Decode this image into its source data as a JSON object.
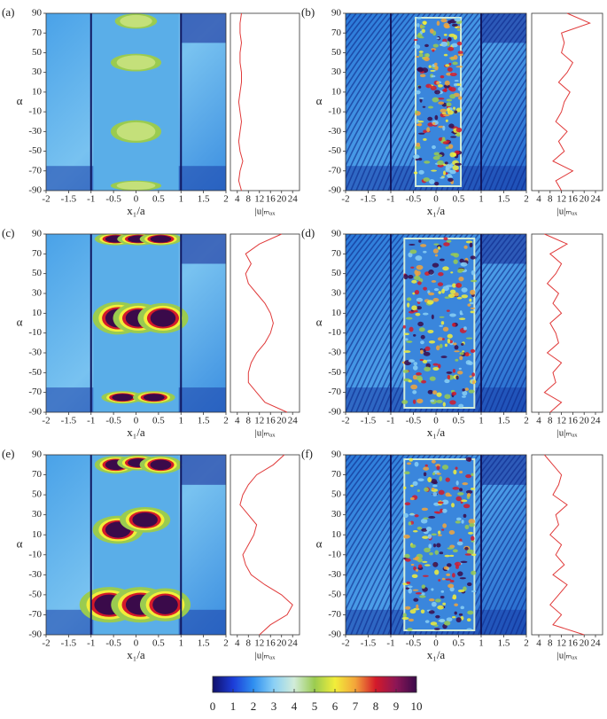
{
  "chart_data": [
    {
      "type": "heatmap",
      "panel": "(a)",
      "xlabel": "x₁/a",
      "ylabel": "α",
      "xlim": [
        -2,
        2
      ],
      "ylim": [
        -90,
        90
      ],
      "xticks": [
        -2,
        -1.5,
        -1,
        -0.5,
        0,
        0.5,
        1,
        1.5,
        2
      ],
      "yticks": [
        -90,
        -70,
        -50,
        -30,
        -10,
        10,
        30,
        50,
        70,
        90
      ]
    },
    {
      "type": "line",
      "xlabel": "|u|ₘₐₓ",
      "xlim": [
        1.5,
        26.5
      ],
      "ylim": [
        -90,
        90
      ],
      "xticks": [
        4,
        8,
        12,
        16,
        20,
        24
      ],
      "alpha": [
        -90,
        -80,
        -70,
        -60,
        -50,
        -40,
        -30,
        -20,
        -10,
        0,
        10,
        20,
        30,
        40,
        50,
        60,
        70,
        80,
        90
      ],
      "series": [
        {
          "color": "#e03a3a",
          "values": [
            5.5,
            4.5,
            5,
            6,
            5,
            4.5,
            5,
            5.5,
            5,
            4.5,
            5,
            5.5,
            5.5,
            5,
            5,
            5.5,
            5,
            5,
            5.5
          ]
        }
      ]
    },
    {
      "type": "heatmap",
      "panel": "(b)",
      "xlabel": "x₁/a",
      "ylabel": "α",
      "xlim": [
        -2,
        2
      ],
      "ylim": [
        -90,
        90
      ],
      "xticks": [
        -2,
        -1.5,
        -1,
        -0.5,
        0,
        0.5,
        1,
        1.5,
        2
      ],
      "yticks": [
        -90,
        -70,
        -50,
        -30,
        -10,
        10,
        30,
        50,
        70,
        90
      ]
    },
    {
      "type": "line",
      "xlabel": "|u|ₘₐₓ",
      "xlim": [
        1.5,
        26.5
      ],
      "ylim": [
        -90,
        90
      ],
      "xticks": [
        4,
        8,
        12,
        16,
        20,
        24
      ],
      "alpha": [
        -90,
        -80,
        -70,
        -60,
        -50,
        -40,
        -30,
        -20,
        -10,
        0,
        10,
        20,
        30,
        40,
        50,
        60,
        70,
        80,
        90
      ],
      "series": [
        {
          "color": "#e03a3a",
          "values": [
            12,
            10,
            16,
            9,
            13,
            11,
            14,
            10,
            12,
            13,
            15,
            11,
            14,
            16,
            12,
            13,
            12,
            22,
            14
          ]
        }
      ]
    },
    {
      "type": "heatmap",
      "panel": "(c)",
      "xlabel": "x₁/a",
      "ylabel": "α",
      "xlim": [
        -2,
        2
      ],
      "ylim": [
        -90,
        90
      ],
      "xticks": [
        -2,
        -1.5,
        -1,
        -0.5,
        0,
        0.5,
        1,
        1.5,
        2
      ],
      "yticks": [
        -90,
        -70,
        -50,
        -30,
        -10,
        10,
        30,
        50,
        70,
        90
      ]
    },
    {
      "type": "line",
      "xlabel": "|u|ₘₐₓ",
      "xlim": [
        1.5,
        26.5
      ],
      "ylim": [
        -90,
        90
      ],
      "xticks": [
        4,
        8,
        12,
        16,
        20,
        24
      ],
      "alpha": [
        -90,
        -80,
        -70,
        -60,
        -50,
        -40,
        -30,
        -20,
        -10,
        0,
        10,
        20,
        30,
        40,
        50,
        60,
        70,
        80,
        90
      ],
      "series": [
        {
          "color": "#e03a3a",
          "values": [
            22,
            14,
            11,
            8,
            8,
            9,
            11,
            14,
            16,
            17,
            16,
            14,
            11,
            8,
            7,
            9,
            7,
            12,
            20
          ]
        }
      ]
    },
    {
      "type": "heatmap",
      "panel": "(d)",
      "xlabel": "x₁/a",
      "ylabel": "α",
      "xlim": [
        -2,
        2
      ],
      "ylim": [
        -90,
        90
      ],
      "xticks": [
        -2,
        -1.5,
        -1,
        -0.5,
        0,
        0.5,
        1,
        1.5,
        2
      ],
      "yticks": [
        -90,
        -70,
        -50,
        -30,
        -10,
        10,
        30,
        50,
        70,
        90
      ]
    },
    {
      "type": "line",
      "xlabel": "|u|ₘₐₓ",
      "xlim": [
        1.5,
        26.5
      ],
      "ylim": [
        -90,
        90
      ],
      "xticks": [
        4,
        8,
        12,
        16,
        20,
        24
      ],
      "alpha": [
        -90,
        -80,
        -70,
        -60,
        -50,
        -40,
        -30,
        -20,
        -10,
        0,
        10,
        20,
        30,
        40,
        50,
        60,
        70,
        80,
        90
      ],
      "series": [
        {
          "color": "#e03a3a",
          "values": [
            8,
            12,
            6,
            10,
            9,
            12,
            7,
            11,
            10,
            8,
            12,
            9,
            11,
            7,
            10,
            12,
            8,
            14,
            6
          ]
        }
      ]
    },
    {
      "type": "heatmap",
      "panel": "(e)",
      "xlabel": "x₁/a",
      "ylabel": "α",
      "xlim": [
        -2,
        2
      ],
      "ylim": [
        -90,
        90
      ],
      "xticks": [
        -2,
        -1.5,
        -1,
        -0.5,
        0,
        0.5,
        1,
        1.5,
        2
      ],
      "yticks": [
        -90,
        -70,
        -50,
        -30,
        -10,
        10,
        30,
        50,
        70,
        90
      ]
    },
    {
      "type": "line",
      "xlabel": "|u|ₘₐₓ",
      "xlim": [
        1.5,
        26.5
      ],
      "ylim": [
        -90,
        90
      ],
      "xticks": [
        4,
        8,
        12,
        16,
        20,
        24
      ],
      "alpha": [
        -90,
        -80,
        -70,
        -60,
        -50,
        -40,
        -30,
        -20,
        -10,
        0,
        10,
        20,
        30,
        40,
        50,
        60,
        70,
        80,
        90
      ],
      "series": [
        {
          "color": "#e03a3a",
          "values": [
            12,
            16,
            22,
            24,
            20,
            14,
            9,
            7,
            6,
            8,
            10,
            11,
            8,
            5,
            6,
            8,
            11,
            17,
            21
          ]
        }
      ]
    },
    {
      "type": "heatmap",
      "panel": "(f)",
      "xlabel": "x₁/a",
      "ylabel": "α",
      "xlim": [
        -2,
        2
      ],
      "ylim": [
        -90,
        90
      ],
      "xticks": [
        -2,
        -1.5,
        -1,
        -0.5,
        0,
        0.5,
        1,
        1.5,
        2
      ],
      "yticks": [
        -90,
        -70,
        -50,
        -30,
        -10,
        10,
        30,
        50,
        70,
        90
      ]
    },
    {
      "type": "line",
      "xlabel": "|u|ₘₐₓ",
      "xlim": [
        1.5,
        26.5
      ],
      "ylim": [
        -90,
        90
      ],
      "xticks": [
        4,
        8,
        12,
        16,
        20,
        24
      ],
      "alpha": [
        -90,
        -80,
        -70,
        -60,
        -50,
        -40,
        -30,
        -20,
        -10,
        0,
        10,
        20,
        30,
        40,
        50,
        60,
        70,
        80,
        90
      ],
      "series": [
        {
          "color": "#e03a3a",
          "values": [
            20,
            9,
            12,
            8,
            11,
            14,
            9,
            13,
            10,
            12,
            8,
            11,
            10,
            14,
            9,
            11,
            12,
            9,
            6
          ]
        }
      ]
    },
    {
      "type": "colorbar",
      "xlim": [
        0,
        10
      ],
      "xticks": [
        0,
        1,
        2,
        3,
        4,
        5,
        6,
        7,
        8,
        9,
        10
      ],
      "colors": [
        "#10106a",
        "#1c3cd8",
        "#2f8ff0",
        "#8ad0f5",
        "#d2ecd9",
        "#9acb50",
        "#f2ee3a",
        "#f3a43a",
        "#d41a2a",
        "#8c1656",
        "#3a0a4a"
      ]
    }
  ]
}
